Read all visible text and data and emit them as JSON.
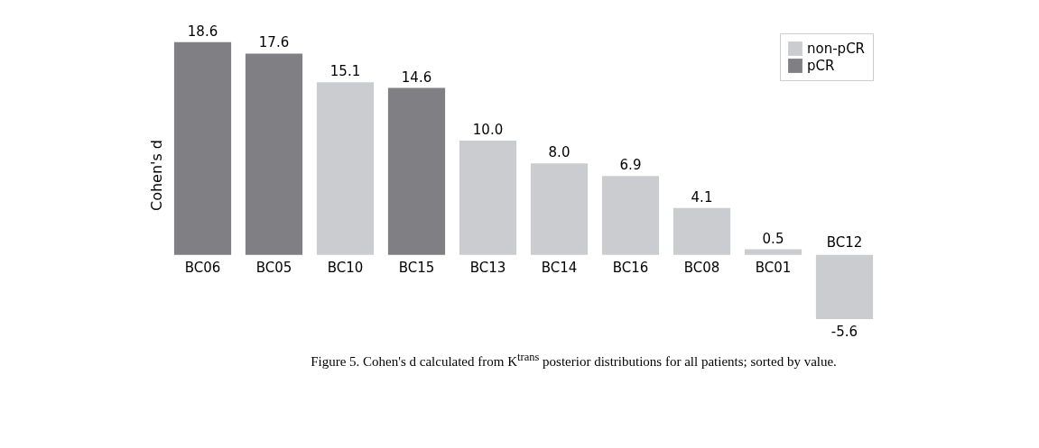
{
  "chart_data": {
    "type": "bar",
    "ylabel": "Cohen's d",
    "categories": [
      "BC06",
      "BC05",
      "BC10",
      "BC15",
      "BC13",
      "BC14",
      "BC16",
      "BC08",
      "BC01",
      "BC12"
    ],
    "series": [
      {
        "name": "non-pCR",
        "color": "#cbcccf",
        "values": [
          null,
          null,
          15.1,
          null,
          10.0,
          8.0,
          6.9,
          4.1,
          0.5,
          -5.6
        ],
        "value_labels": [
          null,
          null,
          "15.1",
          null,
          "10.0",
          "8.0",
          "6.9",
          "4.1",
          "0.5",
          "-5.6"
        ]
      },
      {
        "name": "pCR",
        "color": "#7f7f84",
        "values": [
          18.6,
          17.6,
          null,
          14.6,
          null,
          null,
          null,
          null,
          null,
          null
        ],
        "value_labels": [
          "18.6",
          "17.6",
          null,
          "14.6",
          null,
          null,
          null,
          null,
          null,
          null
        ]
      }
    ],
    "legend": "top right",
    "grid": false,
    "tick_labels": false,
    "annotations": [
      "Figure 5.  Cohen's d calculated from K$^{trans}$ posterior distributions for all patients; sorted by value."
    ]
  }
}
